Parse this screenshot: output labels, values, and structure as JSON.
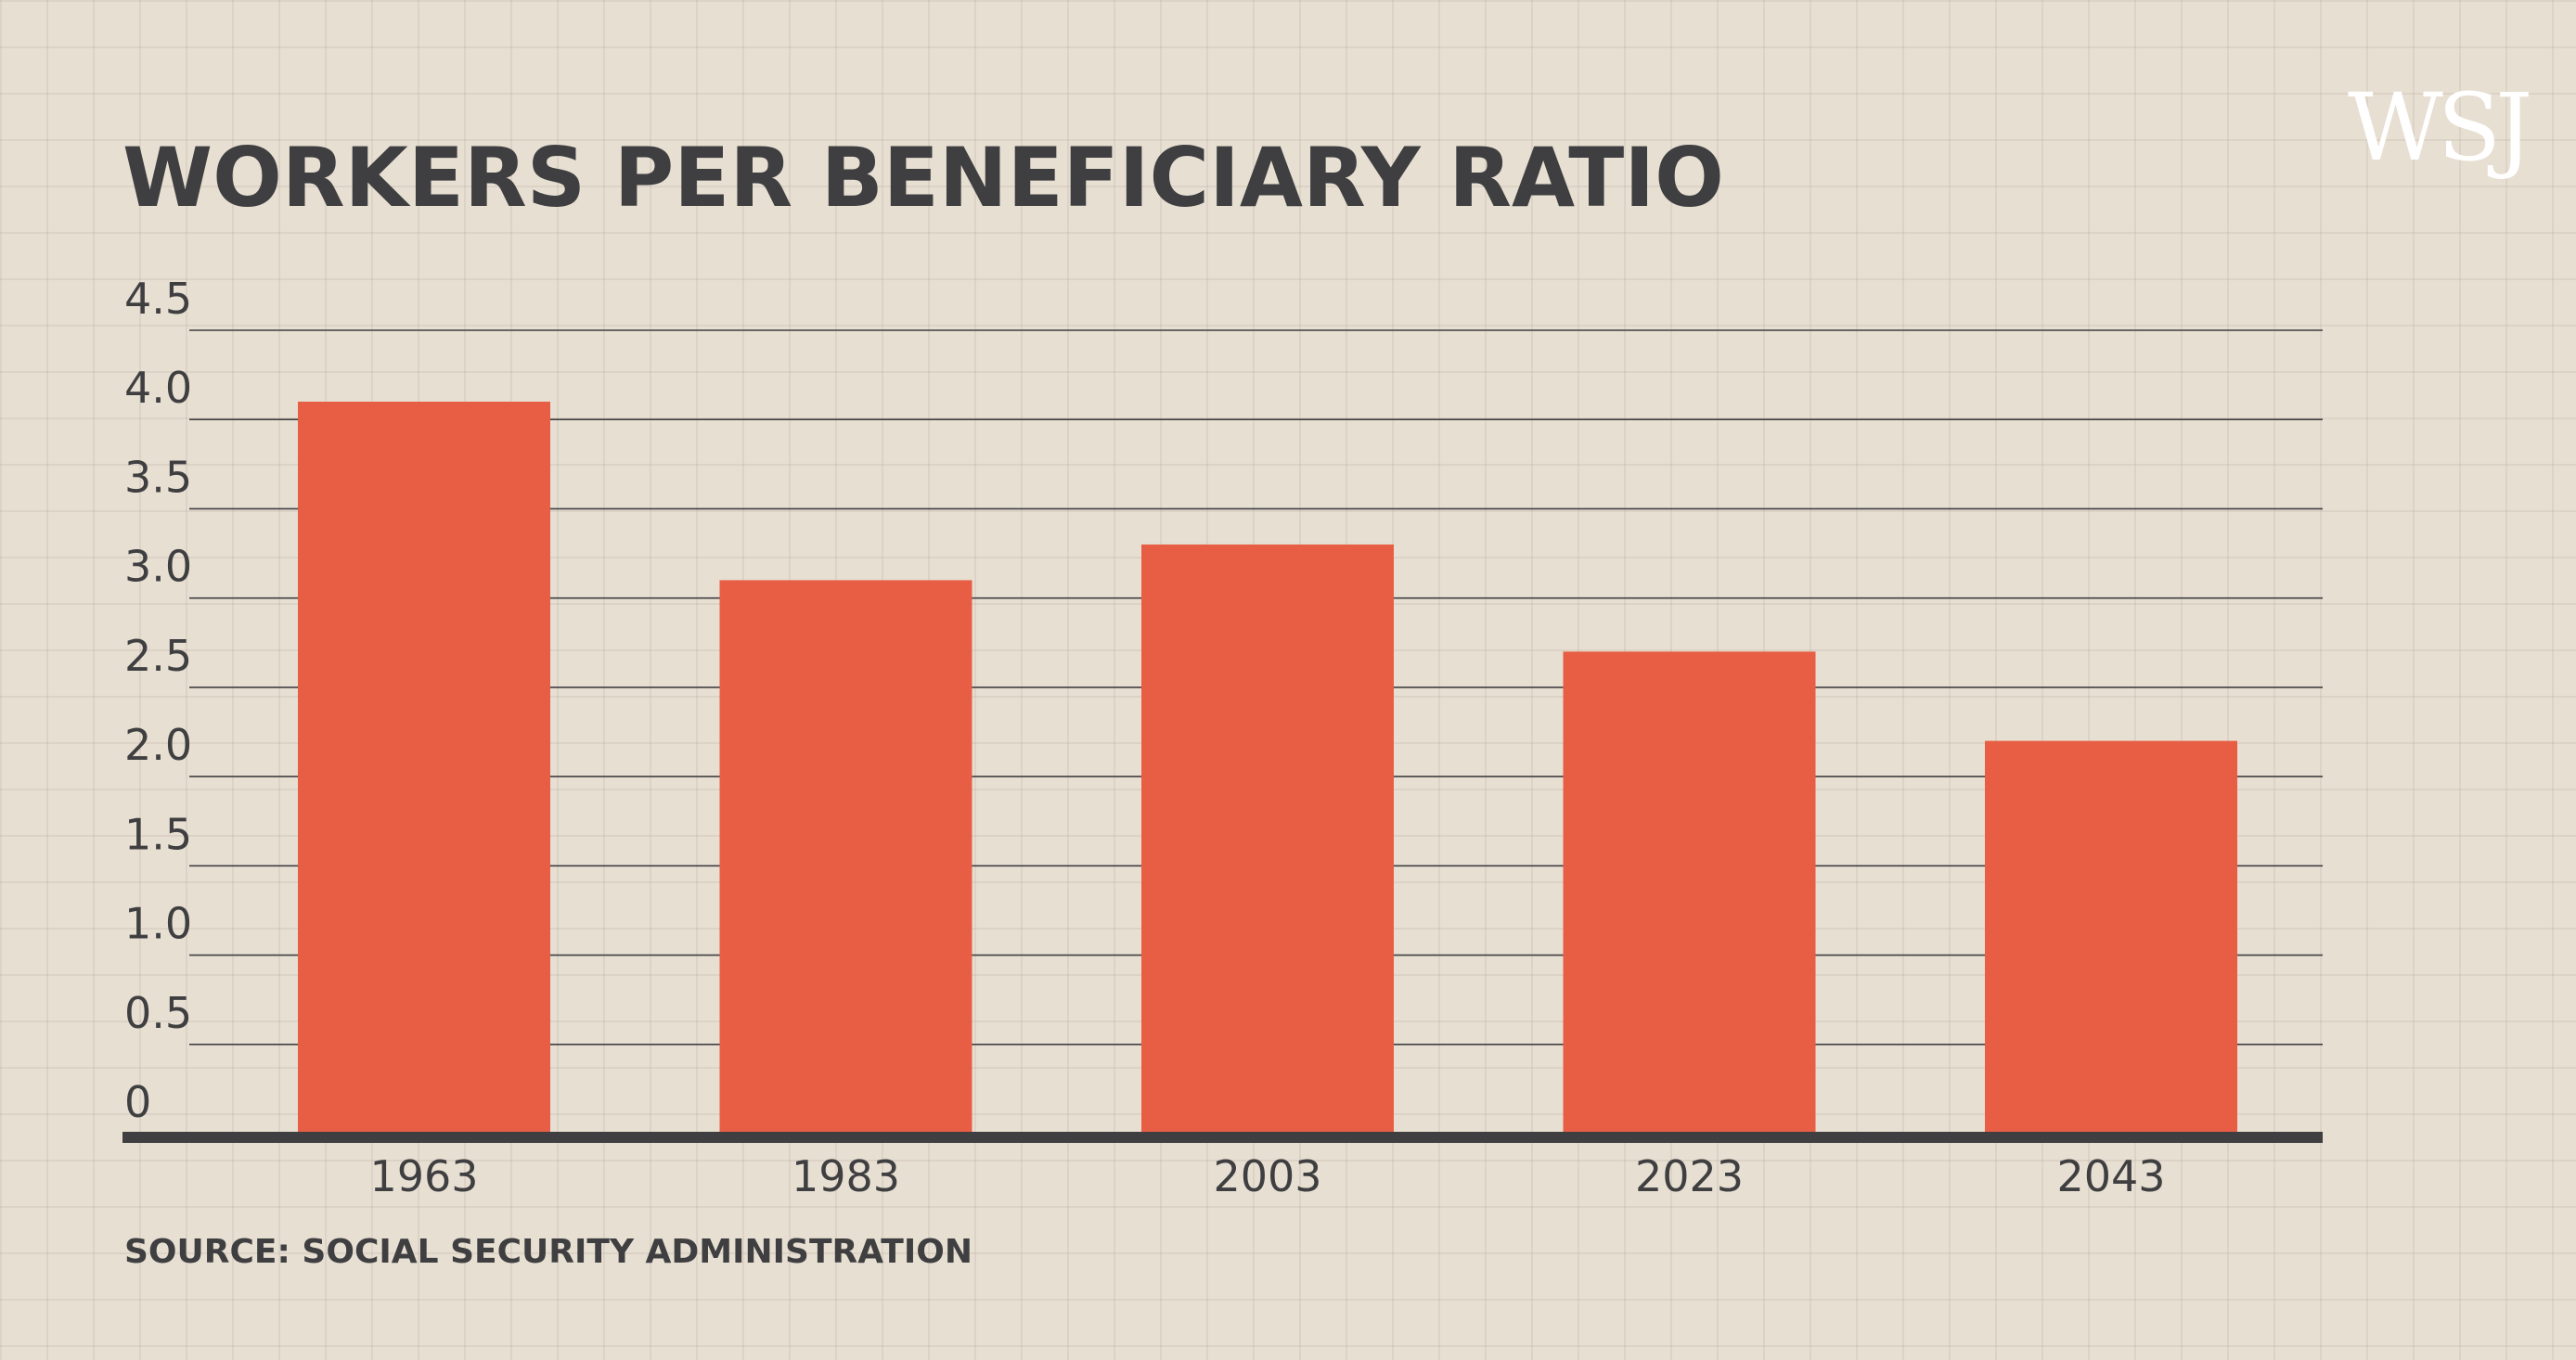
{
  "brand": "WSJ",
  "chart_data": {
    "type": "bar",
    "title": "WORKERS PER BENEFICIARY RATIO",
    "categories": [
      "1963",
      "1983",
      "2003",
      "2023",
      "2043"
    ],
    "values": [
      4.1,
      3.1,
      3.3,
      2.7,
      2.2
    ],
    "ylim": [
      0,
      4.5
    ],
    "yticks": [
      "0",
      "0.5",
      "1.0",
      "1.5",
      "2.0",
      "2.5",
      "3.0",
      "3.5",
      "4.0",
      "4.5"
    ],
    "xlabel": "",
    "ylabel": "",
    "grid": true,
    "source": "SOURCE: SOCIAL SECURITY ADMINISTRATION",
    "colors": {
      "bar": "#e85e44",
      "text": "#3f3f41",
      "gridline": "#3f3f41",
      "background": "#e7dfd2"
    }
  }
}
